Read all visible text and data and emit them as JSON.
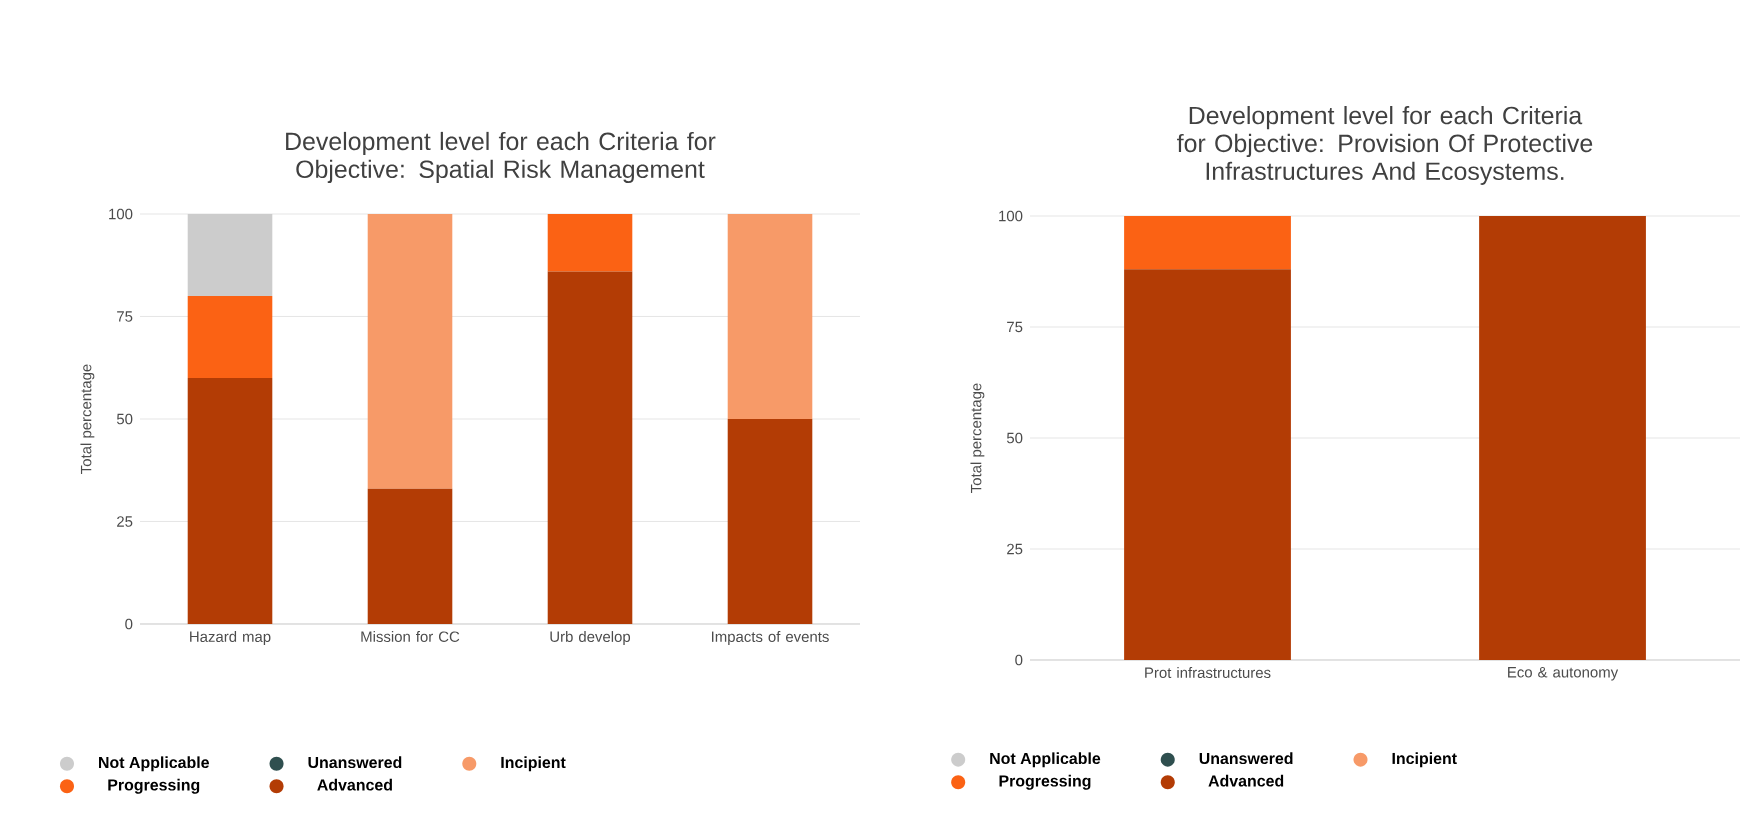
{
  "chart_data": [
    {
      "type": "bar",
      "title": "Development level for each Criteria for Objective: Spatial Risk Management",
      "ylabel": "Total percentage",
      "categories": [
        "Hazard map",
        "Mission for CC",
        "Urb develop",
        "Impacts of events"
      ],
      "stacked": true,
      "ylim": [
        0,
        100
      ],
      "yticks": [
        0,
        25,
        50,
        75,
        100
      ],
      "grid": "y",
      "legend": "bottom",
      "series": [
        {
          "name": "Advanced",
          "color": "#b33c05",
          "values": [
            60,
            33,
            86,
            50
          ]
        },
        {
          "name": "Progressing",
          "color": "#fb6214",
          "values": [
            20,
            0,
            14,
            0
          ]
        },
        {
          "name": "Incipient",
          "color": "#f79a68",
          "values": [
            0,
            67,
            0,
            50
          ]
        },
        {
          "name": "Unanswered",
          "color": "#2f4f4f",
          "values": [
            0,
            0,
            0,
            0
          ]
        },
        {
          "name": "Not Applicable",
          "color": "#cccccc",
          "values": [
            20,
            0,
            0,
            0
          ]
        }
      ]
    },
    {
      "type": "bar",
      "title": "Development level for each Criteria for Objective: Provision Of Protective Infrastructures And Ecosystems.",
      "ylabel": "Total percentage",
      "categories": [
        "Prot infrastructures",
        "Eco & autonomy"
      ],
      "stacked": true,
      "ylim": [
        0,
        100
      ],
      "yticks": [
        0,
        25,
        50,
        75,
        100
      ],
      "grid": "y",
      "legend": "bottom",
      "series": [
        {
          "name": "Advanced",
          "color": "#b33c05",
          "values": [
            88,
            100
          ]
        },
        {
          "name": "Progressing",
          "color": "#fb6214",
          "values": [
            12,
            0
          ]
        },
        {
          "name": "Incipient",
          "color": "#f79a68",
          "values": [
            0,
            0
          ]
        },
        {
          "name": "Unanswered",
          "color": "#2f4f4f",
          "values": [
            0,
            0
          ]
        },
        {
          "name": "Not Applicable",
          "color": "#cccccc",
          "values": [
            0,
            0
          ]
        }
      ]
    }
  ]
}
